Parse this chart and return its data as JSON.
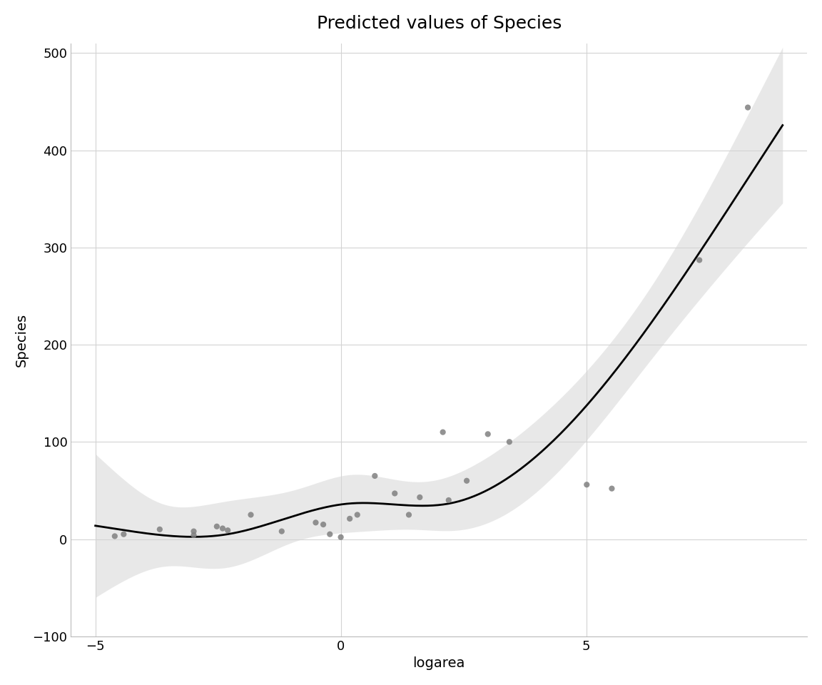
{
  "title": "Predicted values of Species",
  "xlabel": "logarea",
  "ylabel": "Species",
  "xlim": [
    -5.5,
    9.5
  ],
  "ylim": [
    -100,
    510
  ],
  "xticks": [
    -5,
    0,
    5
  ],
  "yticks": [
    -100,
    0,
    100,
    200,
    300,
    400,
    500
  ],
  "background_color": "#ffffff",
  "grid_color": "#d3d3d3",
  "point_color": "#808080",
  "point_size": 35,
  "line_color": "#000000",
  "ribbon_color": "#d3d3d3",
  "ribbon_alpha": 0.5,
  "logarea": [
    -4.605,
    -4.423,
    -3.689,
    -2.996,
    -2.996,
    -2.526,
    -2.408,
    -2.303,
    -1.833,
    -1.204,
    -0.511,
    -0.357,
    -0.223,
    0.0,
    0.182,
    0.336,
    0.693,
    1.099,
    1.386,
    1.609,
    2.079,
    2.197,
    2.565,
    2.996,
    3.434,
    5.01,
    5.521,
    7.305,
    8.292
  ],
  "species_partial": [
    3,
    5,
    10,
    8,
    4,
    13,
    11,
    9,
    25,
    8,
    17,
    15,
    5,
    2,
    21,
    25,
    65,
    47,
    25,
    43,
    110,
    40,
    60,
    108,
    100,
    56,
    52,
    287,
    444
  ],
  "fitted_x": [
    -5.0,
    -4.8,
    -4.6,
    -4.4,
    -4.2,
    -4.0,
    -3.8,
    -3.6,
    -3.4,
    -3.2,
    -3.0,
    -2.8,
    -2.6,
    -2.4,
    -2.2,
    -2.0,
    -1.8,
    -1.6,
    -1.4,
    -1.2,
    -1.0,
    -0.8,
    -0.6,
    -0.4,
    -0.2,
    0.0,
    0.2,
    0.4,
    0.6,
    0.8,
    1.0,
    1.2,
    1.4,
    1.6,
    1.8,
    2.0,
    2.2,
    2.4,
    2.6,
    2.8,
    3.0,
    3.2,
    3.4,
    3.6,
    3.8,
    4.0,
    4.2,
    4.4,
    4.6,
    4.8,
    5.0,
    5.2,
    5.4,
    5.6,
    5.8,
    6.0,
    6.2,
    6.4,
    6.6,
    6.8,
    7.0,
    7.2,
    7.4,
    7.6,
    7.8,
    8.0,
    8.2,
    8.4,
    8.6,
    8.8,
    9.0
  ],
  "title_fontsize": 18,
  "label_fontsize": 14,
  "tick_fontsize": 13
}
